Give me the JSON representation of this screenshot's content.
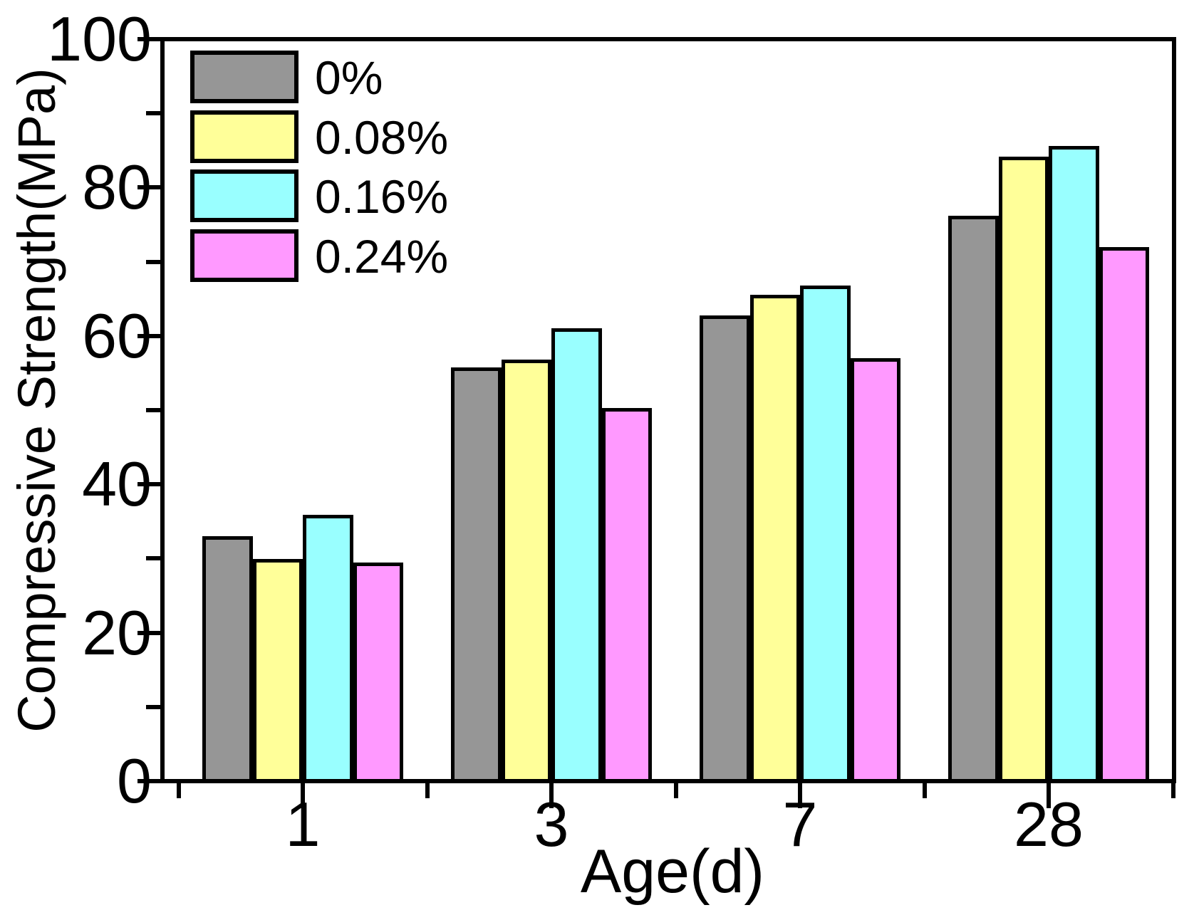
{
  "chart_data": {
    "type": "bar",
    "title": "",
    "xlabel": "Age(d)",
    "ylabel": "Compressive Strength(MPa)",
    "categories": [
      "1",
      "3",
      "7",
      "28"
    ],
    "series": [
      {
        "name": "0%",
        "color": "#969696",
        "values": [
          33.0,
          55.8,
          62.8,
          76.2
        ]
      },
      {
        "name": "0.08%",
        "color": "#FFFF99",
        "values": [
          29.9,
          56.8,
          65.5,
          84.2
        ]
      },
      {
        "name": "0.16%",
        "color": "#99FFFF",
        "values": [
          35.9,
          61.0,
          66.8,
          85.6
        ]
      },
      {
        "name": "0.24%",
        "color": "#FF99FF",
        "values": [
          29.5,
          50.3,
          57.0,
          72.0
        ]
      }
    ],
    "ylim": [
      0,
      100
    ],
    "y_major_ticks": [
      0,
      20,
      40,
      60,
      80,
      100
    ],
    "y_minor_step": 10,
    "grid": false,
    "legend_position": "top-left",
    "bar_edge_color": "#000000",
    "background": "#FFFFFF"
  }
}
